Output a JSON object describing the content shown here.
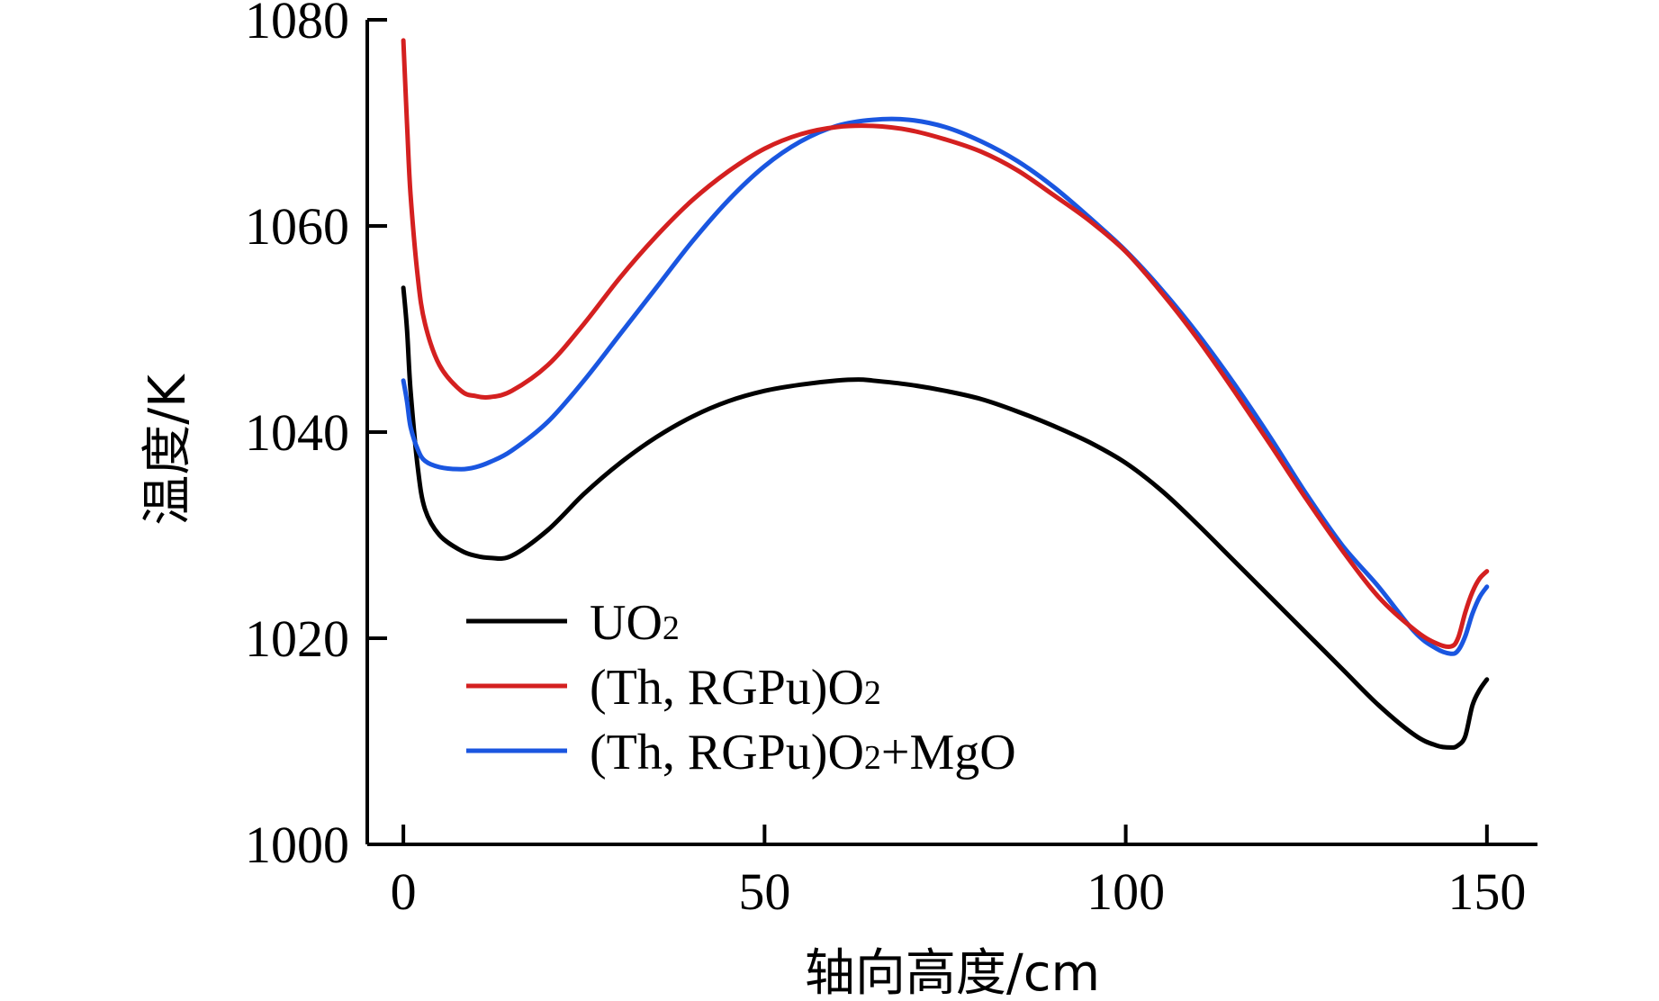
{
  "chart_data": {
    "type": "line",
    "xlabel": "轴向高度/cm",
    "ylabel": "温度/K",
    "xlim": [
      -5,
      157
    ],
    "ylim": [
      1000,
      1080
    ],
    "xticks": [
      0,
      50,
      100,
      150
    ],
    "yticks": [
      1000,
      1020,
      1040,
      1060,
      1080
    ],
    "xtick_labels": [
      "0",
      "50",
      "100",
      "150"
    ],
    "ytick_labels": [
      "1000",
      "1020",
      "1040",
      "1060",
      "1080"
    ],
    "grid": false,
    "legend_position": "lower-left",
    "series": [
      {
        "name": "UO",
        "name_sub": "2",
        "name_suffix": "",
        "color": "#000000",
        "x": [
          0,
          0.5,
          1,
          2,
          3,
          5,
          8,
          10,
          12,
          15,
          20,
          25,
          30,
          35,
          40,
          45,
          50,
          55,
          60,
          63,
          65,
          70,
          75,
          80,
          85,
          90,
          95,
          100,
          105,
          110,
          115,
          120,
          125,
          130,
          135,
          140,
          143,
          145,
          146,
          147,
          148,
          149,
          150
        ],
        "y": [
          1054,
          1050,
          1044,
          1036.5,
          1032.5,
          1030,
          1028.5,
          1028,
          1027.8,
          1028,
          1030.5,
          1034,
          1037,
          1039.5,
          1041.5,
          1043,
          1044,
          1044.6,
          1045,
          1045.1,
          1045,
          1044.6,
          1044,
          1043.2,
          1042,
          1040.6,
          1039,
          1037,
          1034.3,
          1031,
          1027.5,
          1024,
          1020.5,
          1017,
          1013.5,
          1010.6,
          1009.6,
          1009.4,
          1009.6,
          1010.5,
          1013.5,
          1015,
          1016
        ]
      },
      {
        "name": "(Th, RGPu)O",
        "name_sub": "2",
        "name_suffix": "",
        "color": "#d42020",
        "x": [
          0,
          0.5,
          1,
          2,
          3,
          5,
          8,
          10,
          12,
          15,
          20,
          25,
          30,
          35,
          40,
          45,
          50,
          55,
          60,
          65,
          70,
          75,
          80,
          85,
          90,
          95,
          100,
          105,
          110,
          115,
          120,
          125,
          130,
          135,
          140,
          143,
          145,
          146,
          147,
          148,
          149,
          150
        ],
        "y": [
          1078,
          1070,
          1063,
          1055,
          1050.5,
          1046.5,
          1044,
          1043.5,
          1043.4,
          1044,
          1046.5,
          1050.5,
          1055,
          1059,
          1062.5,
          1065.3,
          1067.5,
          1068.9,
          1069.6,
          1069.7,
          1069.3,
          1068.4,
          1067.2,
          1065.4,
          1063,
          1060.5,
          1057.5,
          1053.5,
          1049,
          1044,
          1038.8,
          1033.5,
          1028.5,
          1024,
          1020.8,
          1019.5,
          1019.2,
          1020,
          1022.5,
          1024.5,
          1025.8,
          1026.5
        ]
      },
      {
        "name": "(Th, RGPu)O",
        "name_sub": "2",
        "name_suffix": "+MgO",
        "color": "#1a56e0",
        "x": [
          0,
          0.5,
          1,
          2,
          3,
          5,
          8,
          10,
          12,
          15,
          20,
          25,
          30,
          35,
          40,
          45,
          50,
          55,
          60,
          65,
          70,
          75,
          80,
          85,
          90,
          95,
          100,
          105,
          110,
          115,
          120,
          125,
          130,
          135,
          140,
          143,
          145,
          146,
          147,
          148,
          149,
          150
        ],
        "y": [
          1045,
          1043,
          1040.5,
          1038.3,
          1037.2,
          1036.6,
          1036.4,
          1036.6,
          1037.1,
          1038.2,
          1041,
          1045,
          1049.5,
          1054,
          1058.5,
          1062.5,
          1065.8,
          1068.2,
          1069.7,
          1070.3,
          1070.3,
          1069.6,
          1068.2,
          1066.3,
          1063.8,
          1060.8,
          1057.6,
          1053.8,
          1049.5,
          1044.7,
          1039.5,
          1034,
          1029,
          1025,
          1020.6,
          1019,
          1018.5,
          1018.8,
          1020.2,
          1022.4,
          1024,
          1025
        ]
      }
    ]
  }
}
